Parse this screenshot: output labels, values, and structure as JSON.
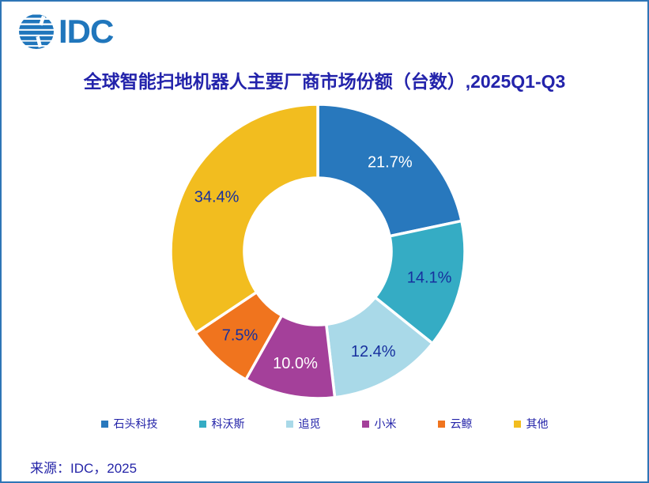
{
  "page": {
    "border_color": "#2e75b6",
    "background": "#ffffff"
  },
  "header": {
    "logo_text": "IDC",
    "logo_color": "#2076bc"
  },
  "title": {
    "text": "全球智能扫地机器人主要厂商市场份额（台数）,2025Q1-Q3",
    "color": "#2323ab"
  },
  "chart_data": {
    "type": "pie",
    "subtype": "donut",
    "title": "全球智能扫地机器人主要厂商市场份额（台数）,2025Q1-Q3",
    "unit": "%",
    "start_angle_deg": 0,
    "direction": "clockwise",
    "donut_hole_ratio": 0.5,
    "legend_position": "bottom",
    "gap_stroke_color": "#ffffff",
    "label_navy": "#17309e",
    "slices": [
      {
        "name": "石头科技",
        "value": 21.7,
        "label": "21.7%",
        "color": "#2878bd",
        "label_color": "#ffffff"
      },
      {
        "name": "科沃斯",
        "value": 14.1,
        "label": "14.1%",
        "color": "#35acc4",
        "label_color": "#17309e"
      },
      {
        "name": "追觅",
        "value": 12.4,
        "label": "12.4%",
        "color": "#a9d9e8",
        "label_color": "#17309e"
      },
      {
        "name": "小米",
        "value": 10.0,
        "label": "10.0%",
        "color": "#a4409a",
        "label_color": "#ffffff"
      },
      {
        "name": "云鲸",
        "value": 7.5,
        "label": "7.5%",
        "color": "#f0741e",
        "label_color": "#17309e"
      },
      {
        "name": "其他",
        "value": 34.4,
        "label": "34.4%",
        "color": "#f2bd1f",
        "label_color": "#17309e"
      }
    ]
  },
  "legend": {
    "text_color": "#2222a8"
  },
  "source": {
    "text": "来源：IDC，2025"
  }
}
